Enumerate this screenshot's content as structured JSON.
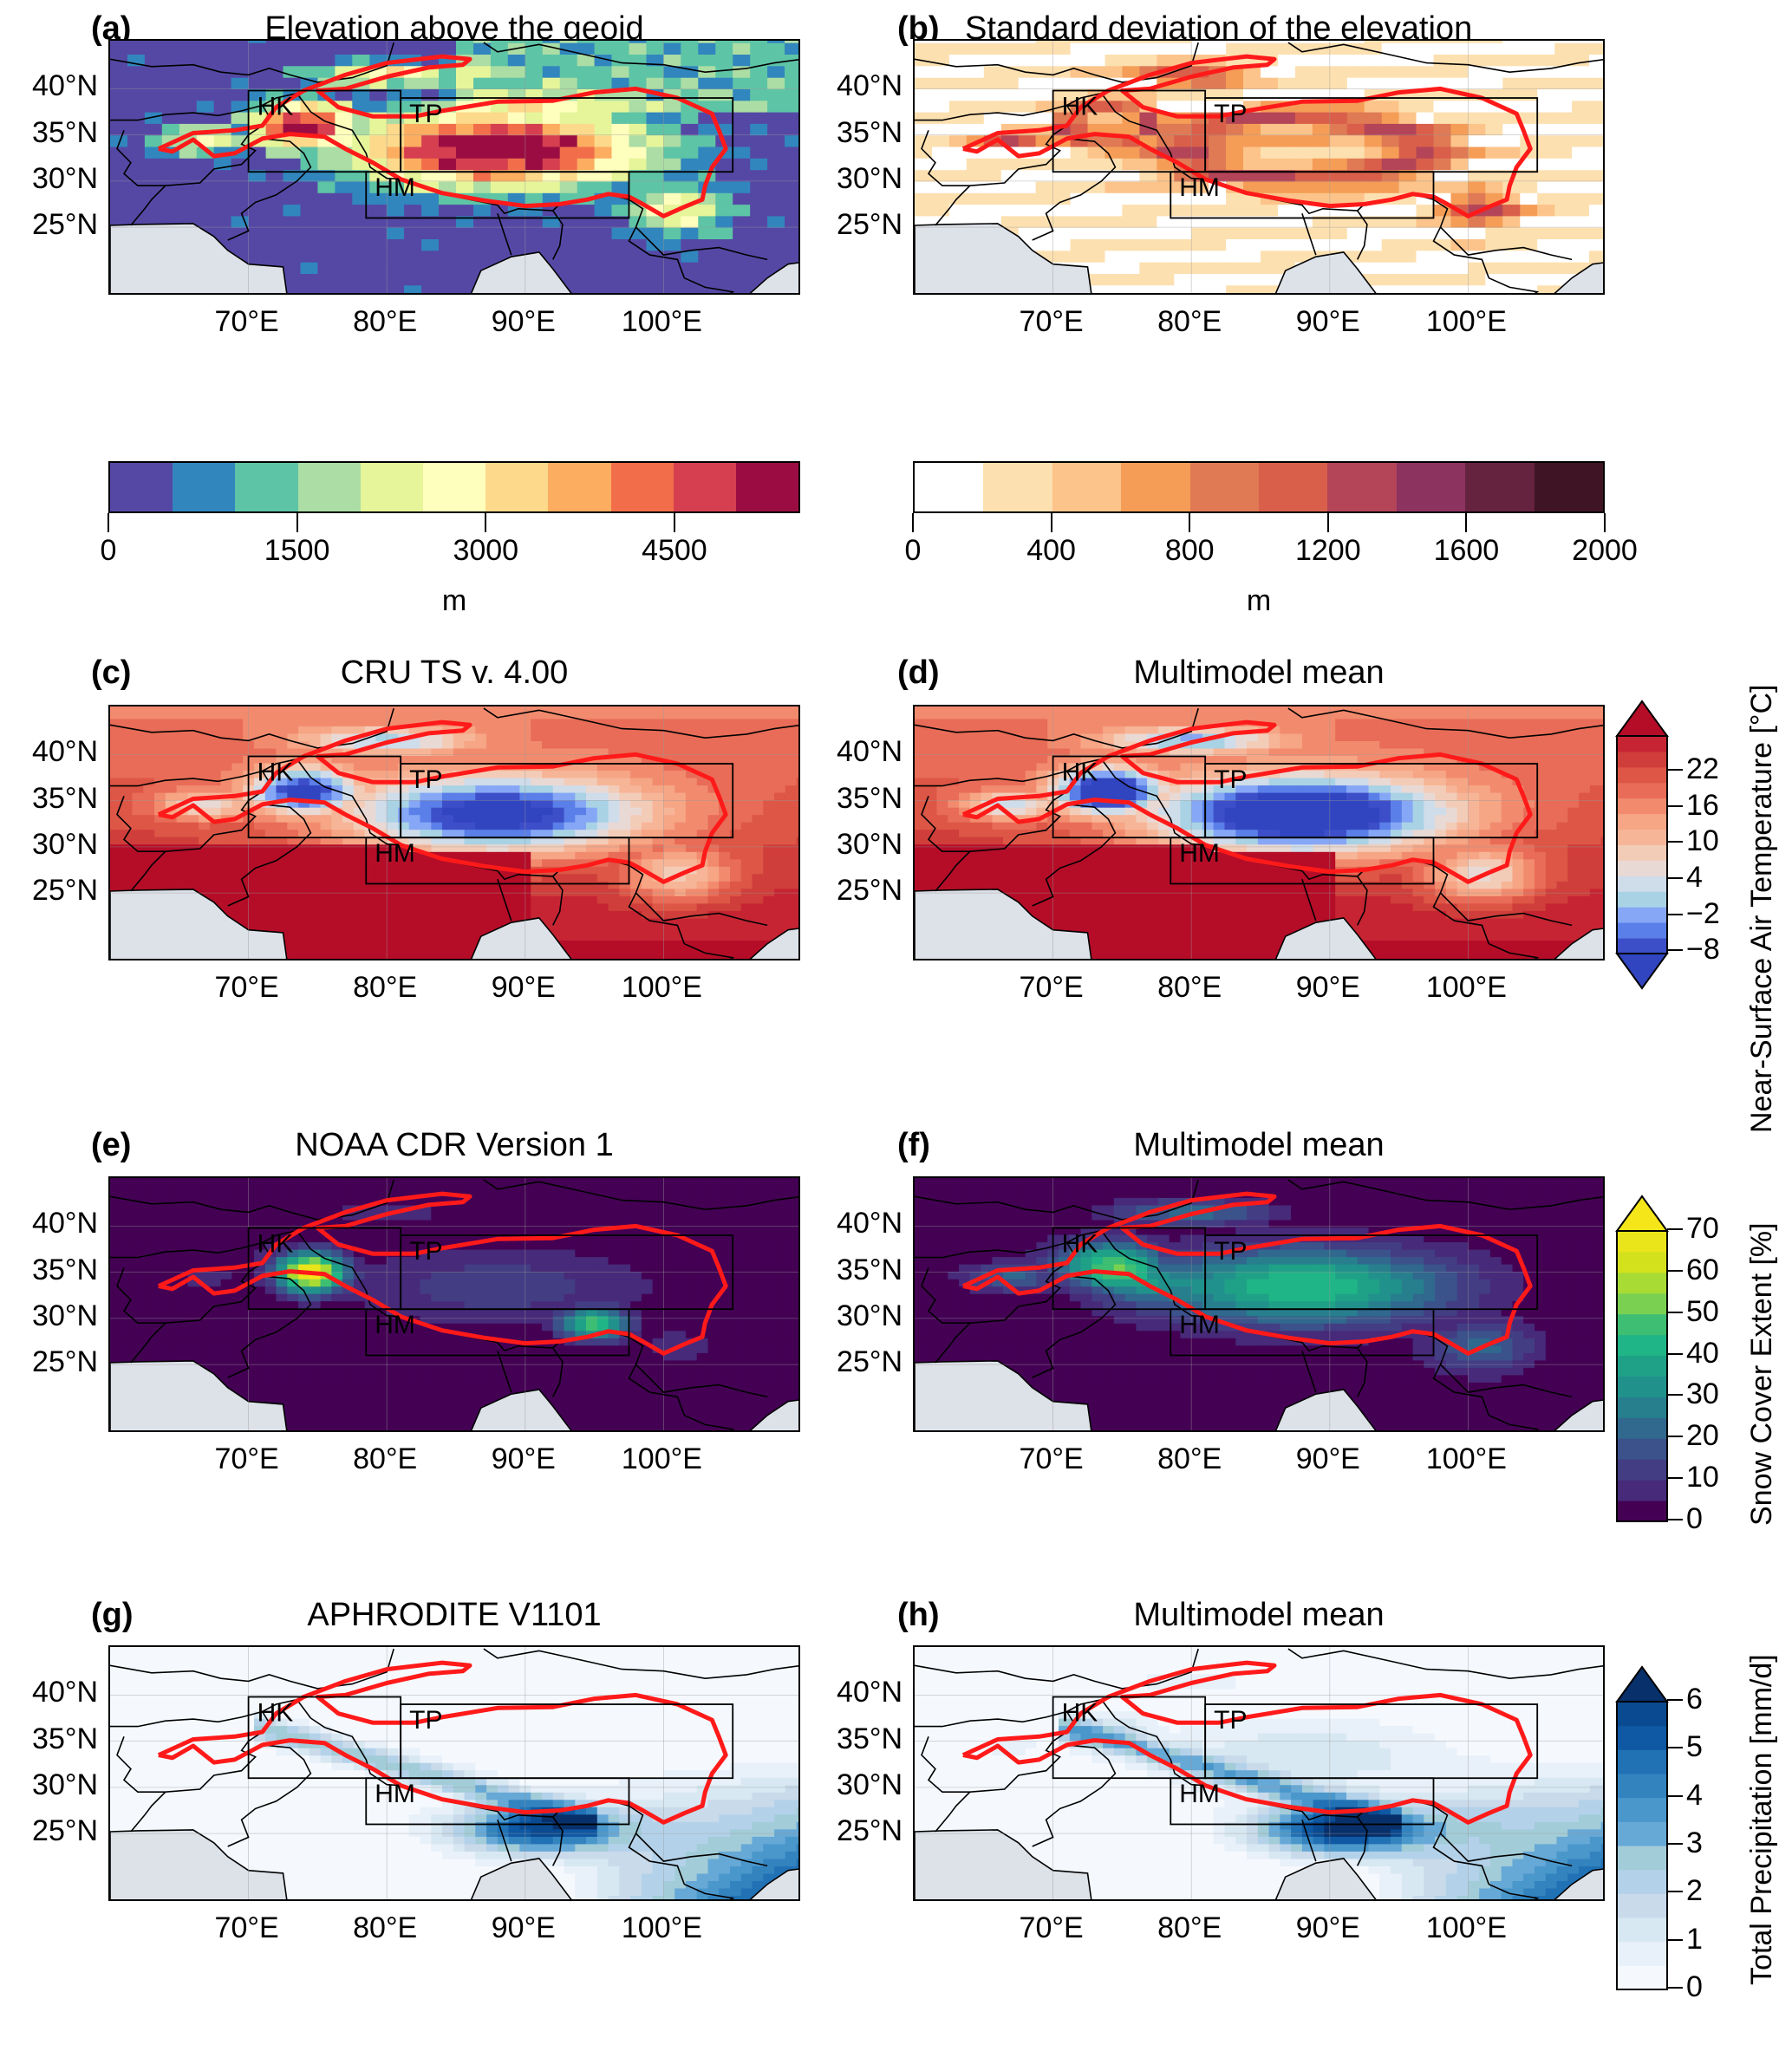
{
  "figure": {
    "lat_ticks": [
      "40°N",
      "35°N",
      "30°N",
      "25°N"
    ],
    "lat_values": [
      40,
      35,
      30,
      25
    ],
    "lon_ticks": [
      "70°E",
      "80°E",
      "90°E",
      "100°E"
    ],
    "lon_values": [
      70,
      80,
      90,
      100
    ],
    "map_extent": {
      "lon": [
        60,
        110
      ],
      "lat": [
        17.5,
        45.2
      ]
    },
    "regions": [
      {
        "name": "HK",
        "lon": [
          70,
          81
        ],
        "lat": [
          31,
          39.8
        ]
      },
      {
        "name": "TP",
        "lon": [
          81,
          105
        ],
        "lat": [
          31,
          39
        ]
      },
      {
        "name": "HM",
        "lon": [
          78.5,
          97.5
        ],
        "lat": [
          26,
          31
        ]
      }
    ],
    "contour_color": "#ff1a1a",
    "ocean_color": "#dde1e8"
  },
  "panels": [
    {
      "id": "a",
      "label": "(a)",
      "title": "Elevation above the geoid",
      "field": "elevation"
    },
    {
      "id": "b",
      "label": "(b)",
      "title": "Standard deviation of the elevation",
      "field": "elev_std"
    },
    {
      "id": "c",
      "label": "(c)",
      "title": "CRU TS v. 4.00",
      "field": "temperature"
    },
    {
      "id": "d",
      "label": "(d)",
      "title": "Multimodel mean",
      "field": "temperature"
    },
    {
      "id": "e",
      "label": "(e)",
      "title": "NOAA CDR Version 1",
      "field": "snow"
    },
    {
      "id": "f",
      "label": "(f)",
      "title": "Multimodel mean",
      "field": "snow"
    },
    {
      "id": "g",
      "label": "(g)",
      "title": "APHRODITE V1101",
      "field": "precip"
    },
    {
      "id": "h",
      "label": "(h)",
      "title": "Multimodel mean",
      "field": "precip"
    }
  ],
  "colorbars": {
    "elevation": {
      "unit": "m",
      "ticks": [
        "0",
        "1500",
        "3000",
        "4500"
      ],
      "tick_values": [
        0,
        1500,
        3000,
        4500
      ],
      "range": [
        0,
        5500
      ],
      "colors": [
        "#5548a5",
        "#3186bd",
        "#5ec4a6",
        "#abdda4",
        "#e6f59a",
        "#fefebd",
        "#fdd98b",
        "#fcad60",
        "#f26d4a",
        "#d63f4f",
        "#9b0d42"
      ]
    },
    "elev_std": {
      "unit": "m",
      "ticks": [
        "0",
        "400",
        "800",
        "1200",
        "1600",
        "2000"
      ],
      "tick_values": [
        0,
        400,
        800,
        1200,
        1600,
        2000
      ],
      "range": [
        0,
        2000
      ],
      "colors": [
        "#ffffff",
        "#fde0b0",
        "#fcc48a",
        "#f59d57",
        "#df7a54",
        "#d95f4a",
        "#b44457",
        "#8c3360",
        "#662340",
        "#3f1525"
      ]
    },
    "temperature": {
      "label": "Near-Surface Air Temperature [°C]",
      "ticks": [
        "22",
        "16",
        "10",
        "4",
        "−2",
        "−8"
      ],
      "tick_values": [
        22,
        16,
        10,
        4,
        -2,
        -8
      ],
      "range": [
        -8,
        28
      ],
      "colors_low_to_high": [
        "#3d4ec9",
        "#5a7fe8",
        "#85a7f5",
        "#a9d2e5",
        "#cfdcea",
        "#e9d9d4",
        "#f3ccb8",
        "#f7b597",
        "#f6a585",
        "#f28b6e",
        "#e86c57",
        "#dd5646",
        "#cf3e3a",
        "#c62433"
      ],
      "under_color": "#3145c0",
      "over_color": "#b50d28"
    },
    "snow": {
      "label": "Snow Cover Extent [%]",
      "ticks": [
        "70",
        "60",
        "50",
        "40",
        "30",
        "20",
        "10",
        "0"
      ],
      "tick_values": [
        70,
        60,
        50,
        40,
        30,
        20,
        10,
        0
      ],
      "range": [
        0,
        70
      ],
      "colors_low_to_high": [
        "#440154",
        "#472a7a",
        "#433d84",
        "#3b528b",
        "#30688e",
        "#277f8e",
        "#21918c",
        "#1fa187",
        "#20b586",
        "#3dbe72",
        "#7ad151",
        "#a8db34",
        "#d3e11d",
        "#e9e51a"
      ],
      "over_color": "#f5e61a"
    },
    "precip": {
      "label": "Total Precipitation [mm/d]",
      "ticks": [
        "6",
        "5",
        "4",
        "3",
        "2",
        "1",
        "0"
      ],
      "tick_values": [
        6,
        5,
        4,
        3,
        2,
        1,
        0
      ],
      "range": [
        0,
        6
      ],
      "colors_low_to_high": [
        "#f5f9fe",
        "#e8f0f9",
        "#d8e8f2",
        "#c9daea",
        "#b3d2ea",
        "#a2ccd8",
        "#66a8d6",
        "#4a97cb",
        "#3383bf",
        "#2171b5",
        "#0f58a3",
        "#0a4a90"
      ],
      "over_color": "#08306b"
    }
  }
}
